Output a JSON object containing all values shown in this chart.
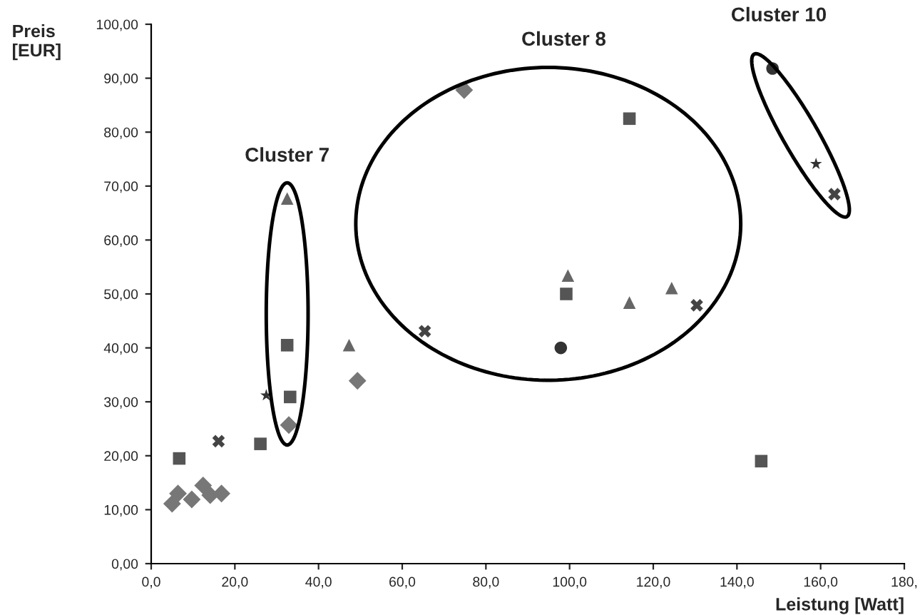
{
  "chart_data": {
    "type": "scatter",
    "xlabel": "Leistung [Watt]",
    "ylabel": "Preis\n[EUR]",
    "xlim": [
      0,
      180
    ],
    "ylim": [
      0,
      100
    ],
    "xticks": [
      {
        "value": 0,
        "label": "0,0"
      },
      {
        "value": 20,
        "label": "20,0"
      },
      {
        "value": 40,
        "label": "40,0"
      },
      {
        "value": 60,
        "label": "60,0"
      },
      {
        "value": 80,
        "label": "80,0"
      },
      {
        "value": 100,
        "label": "100,0"
      },
      {
        "value": 120,
        "label": "120,0"
      },
      {
        "value": 140,
        "label": "140,0"
      },
      {
        "value": 160,
        "label": "160,0"
      },
      {
        "value": 180,
        "label": "180,"
      }
    ],
    "yticks": [
      {
        "value": 0,
        "label": "0,00"
      },
      {
        "value": 10,
        "label": "10,00"
      },
      {
        "value": 20,
        "label": "20,00"
      },
      {
        "value": 30,
        "label": "30,00"
      },
      {
        "value": 40,
        "label": "40,00"
      },
      {
        "value": 50,
        "label": "50,00"
      },
      {
        "value": 60,
        "label": "60,00"
      },
      {
        "value": 70,
        "label": "70,00"
      },
      {
        "value": 80,
        "label": "80,00"
      },
      {
        "value": 90,
        "label": "90,00"
      },
      {
        "value": 100,
        "label": "100,00"
      }
    ],
    "grid": false,
    "legend": false,
    "series": [
      {
        "color": "#555555",
        "marker": "square",
        "x": [
          6.7,
          26.1,
          114.3,
          33.2,
          99.2,
          32.5,
          145.8
        ],
        "values": [
          19.5,
          22.2,
          82.5,
          30.9,
          50,
          40.5,
          19
        ]
      },
      {
        "color": "#777777",
        "marker": "diamond",
        "x": [
          5.0,
          6.4,
          9.7,
          12.4,
          14.1,
          16.8,
          74.8,
          49.3,
          32.9
        ],
        "values": [
          11.1,
          13,
          11.9,
          14.5,
          12.7,
          13,
          87.8,
          33.9,
          25.7
        ]
      },
      {
        "color": "#666666",
        "marker": "triangle",
        "x": [
          32.5,
          47.3,
          114.3,
          99.6,
          124.4
        ],
        "values": [
          67.7,
          40.5,
          48.4,
          53.4,
          51.1
        ]
      },
      {
        "color": "#333333",
        "marker": "circle",
        "x": [
          148.5,
          97.9
        ],
        "values": [
          91.8,
          40
        ]
      },
      {
        "color": "#444444",
        "marker": "cross",
        "x": [
          65.4,
          130.4,
          163.3,
          16.1
        ],
        "values": [
          43.1,
          47.9,
          68.5,
          22.7
        ]
      },
      {
        "color": "#333333",
        "marker": "star",
        "x": [
          27.5,
          158.9
        ],
        "values": [
          31.2,
          74.1
        ]
      }
    ],
    "annotations": [
      "Cluster 7",
      "Cluster 8",
      "Cluster 10"
    ]
  }
}
